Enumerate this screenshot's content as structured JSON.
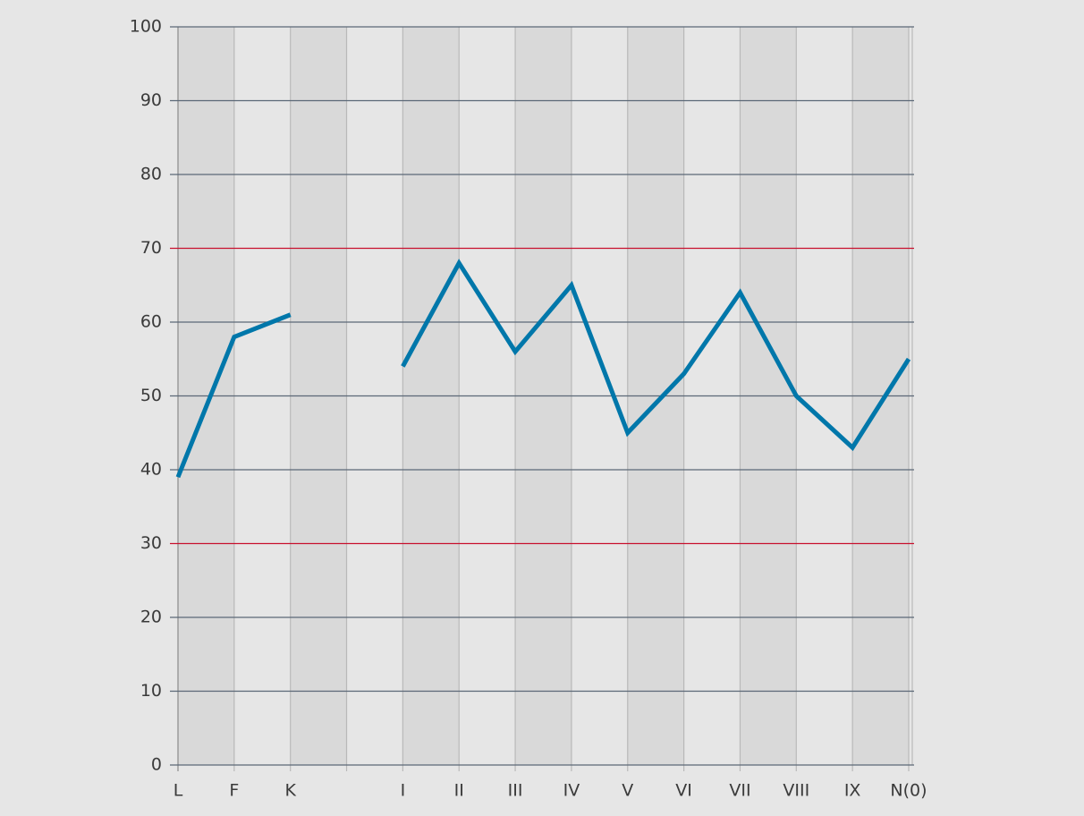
{
  "chart_data": {
    "type": "line",
    "categories": [
      "L",
      "F",
      "K",
      null,
      "I",
      "II",
      "III",
      "IV",
      "V",
      "VI",
      "VII",
      "VIII",
      "IX",
      "N(0)"
    ],
    "values": [
      39,
      58,
      61,
      null,
      54,
      68,
      56,
      65,
      45,
      53,
      64,
      50,
      43,
      55
    ],
    "color": "#0077aa",
    "ylim": [
      0,
      100
    ],
    "yticks": [
      0,
      10,
      20,
      30,
      40,
      50,
      60,
      70,
      80,
      90,
      100
    ],
    "grid": true,
    "reference_lines": {
      "values": [
        30,
        70
      ],
      "color": "#c8102e"
    }
  }
}
